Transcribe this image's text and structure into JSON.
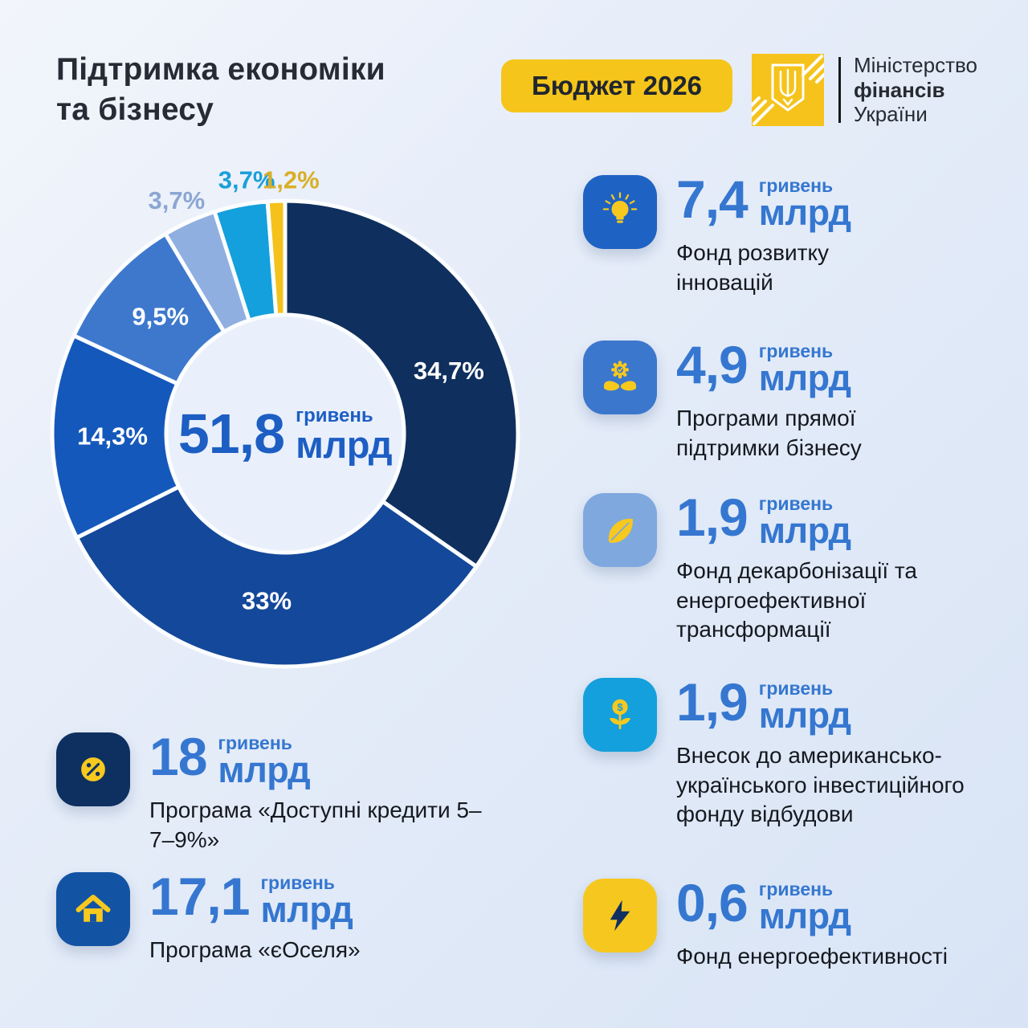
{
  "header": {
    "title_line1": "Підтримка економіки",
    "title_line2": "та бізнесу",
    "badge": "Бюджет 2026",
    "ministry": {
      "line1": "Міністерство",
      "line2": "фінансів",
      "line3": "України"
    }
  },
  "colors": {
    "background": "#e3ecf8",
    "accent_yellow": "#f5c51b",
    "stat_number_blue": "#3577d0",
    "center_blue": "#1d5ec3",
    "dark_navy": "#0f2f5e",
    "text_dark": "#15191f"
  },
  "chart_data": {
    "type": "pie",
    "subtype": "donut",
    "legend_position": "none",
    "center": {
      "value": "51,8",
      "unit_small": "гривень",
      "unit_big": "млрд"
    },
    "slices": [
      {
        "label": "34,7%",
        "value": 34.7,
        "color": "#0f2f5e",
        "label_inside": true
      },
      {
        "label": "33%",
        "value": 33.0,
        "color": "#14489a",
        "label_inside": true
      },
      {
        "label": "14,3%",
        "value": 14.3,
        "color": "#1558bb",
        "label_inside": true
      },
      {
        "label": "9,5%",
        "value": 9.5,
        "color": "#3d78cd",
        "label_inside": true
      },
      {
        "label": "3,7%",
        "value": 3.7,
        "color": "#8fafe0",
        "label_inside": false,
        "label_color": "#8ca6d2"
      },
      {
        "label": "3,7%",
        "value": 3.7,
        "color": "#14a0dc",
        "label_inside": false,
        "label_color": "#1b9fd8"
      },
      {
        "label": "1,2%",
        "value": 1.2,
        "color": "#f5c21b",
        "label_inside": false,
        "label_color": "#d8af28"
      }
    ]
  },
  "left_stats": [
    {
      "icon": "percent-icon",
      "value": "18",
      "unit_small": "гривень",
      "unit_big": "млрд",
      "desc": "Програма «Доступні кредити 5–7–9%»"
    },
    {
      "icon": "house-icon",
      "value": "17,1",
      "unit_small": "гривень",
      "unit_big": "млрд",
      "desc": "Програма «єОселя»"
    }
  ],
  "right_stats": [
    {
      "icon": "lightbulb-icon",
      "value": "7,4",
      "unit_small": "гривень",
      "unit_big": "млрд",
      "desc": "Фонд розвитку інновацій"
    },
    {
      "icon": "hands-gear-icon",
      "value": "4,9",
      "unit_small": "гривень",
      "unit_big": "млрд",
      "desc": "Програми прямої підтримки бізнесу"
    },
    {
      "icon": "leaf-icon",
      "value": "1,9",
      "unit_small": "гривень",
      "unit_big": "млрд",
      "desc": "Фонд декарбонізації та енергоефективної трансформації"
    },
    {
      "icon": "money-plant-icon",
      "value": "1,9",
      "unit_small": "гривень",
      "unit_big": "млрд",
      "desc": "Внесок до американсько-українського інвестиційного фонду відбудови"
    },
    {
      "icon": "lightning-icon",
      "value": "0,6",
      "unit_small": "гривень",
      "unit_big": "млрд",
      "desc": "Фонд енергоефективності"
    }
  ]
}
